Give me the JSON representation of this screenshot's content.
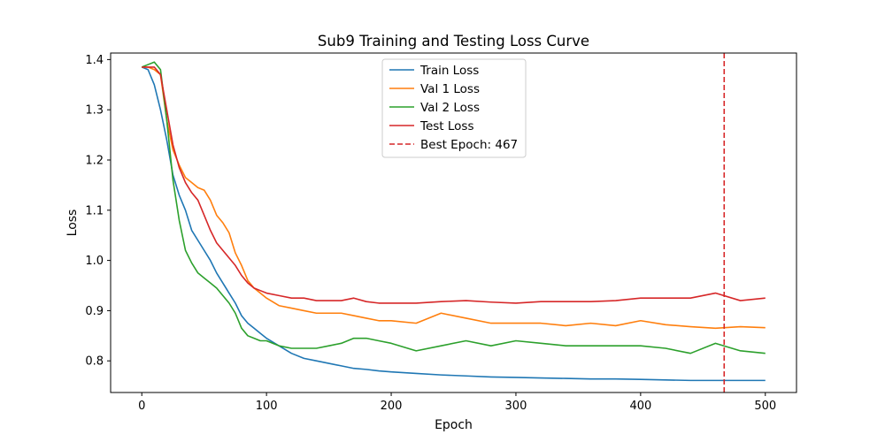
{
  "chart_data": {
    "type": "line",
    "title": "Sub9 Training and Testing Loss Curve",
    "xlabel": "Epoch",
    "ylabel": "Loss",
    "xlim": [
      -25,
      525
    ],
    "ylim": [
      0.737,
      1.413
    ],
    "xticks": [
      0,
      100,
      200,
      300,
      400,
      500
    ],
    "yticks": [
      0.8,
      0.9,
      1.0,
      1.1,
      1.2,
      1.3,
      1.4
    ],
    "ytick_labels": [
      "0.8",
      "0.9",
      "1.0",
      "1.1",
      "1.2",
      "1.3",
      "1.4"
    ],
    "grid": false,
    "legend_position": "upper center",
    "series": [
      {
        "name": "Train Loss",
        "color": "#1f77b4",
        "x": [
          0,
          5,
          10,
          15,
          20,
          25,
          30,
          35,
          40,
          45,
          50,
          55,
          60,
          65,
          70,
          75,
          80,
          85,
          90,
          95,
          100,
          110,
          120,
          130,
          140,
          150,
          160,
          170,
          180,
          190,
          200,
          220,
          240,
          260,
          280,
          300,
          320,
          340,
          360,
          380,
          400,
          420,
          440,
          460,
          480,
          500
        ],
        "y": [
          1.385,
          1.38,
          1.35,
          1.3,
          1.24,
          1.17,
          1.13,
          1.1,
          1.06,
          1.04,
          1.02,
          1.0,
          0.975,
          0.955,
          0.935,
          0.915,
          0.89,
          0.875,
          0.865,
          0.855,
          0.845,
          0.83,
          0.815,
          0.805,
          0.8,
          0.795,
          0.79,
          0.785,
          0.783,
          0.78,
          0.778,
          0.775,
          0.772,
          0.77,
          0.768,
          0.767,
          0.766,
          0.765,
          0.764,
          0.764,
          0.763,
          0.762,
          0.761,
          0.761,
          0.761,
          0.761
        ]
      },
      {
        "name": "Val 1 Loss",
        "color": "#ff7f0e",
        "x": [
          0,
          5,
          10,
          15,
          20,
          25,
          30,
          35,
          40,
          45,
          50,
          55,
          60,
          65,
          70,
          75,
          80,
          85,
          90,
          95,
          100,
          110,
          120,
          130,
          140,
          150,
          160,
          170,
          180,
          190,
          200,
          220,
          240,
          260,
          280,
          300,
          320,
          340,
          360,
          380,
          400,
          420,
          440,
          460,
          480,
          500
        ],
        "y": [
          1.385,
          1.385,
          1.38,
          1.37,
          1.28,
          1.22,
          1.19,
          1.165,
          1.155,
          1.145,
          1.14,
          1.12,
          1.09,
          1.075,
          1.055,
          1.015,
          0.99,
          0.96,
          0.945,
          0.935,
          0.925,
          0.91,
          0.905,
          0.9,
          0.895,
          0.895,
          0.895,
          0.89,
          0.885,
          0.88,
          0.88,
          0.875,
          0.895,
          0.885,
          0.875,
          0.875,
          0.875,
          0.87,
          0.875,
          0.87,
          0.88,
          0.872,
          0.868,
          0.865,
          0.868,
          0.866
        ]
      },
      {
        "name": "Val 2 Loss",
        "color": "#2ca02c",
        "x": [
          0,
          5,
          10,
          15,
          20,
          25,
          30,
          35,
          40,
          45,
          50,
          55,
          60,
          65,
          70,
          75,
          80,
          85,
          90,
          95,
          100,
          110,
          120,
          130,
          140,
          150,
          160,
          170,
          180,
          190,
          200,
          220,
          240,
          260,
          280,
          300,
          320,
          340,
          360,
          380,
          400,
          420,
          440,
          460,
          480,
          500
        ],
        "y": [
          1.385,
          1.39,
          1.395,
          1.38,
          1.28,
          1.16,
          1.08,
          1.02,
          0.995,
          0.975,
          0.965,
          0.955,
          0.945,
          0.93,
          0.915,
          0.895,
          0.865,
          0.85,
          0.845,
          0.84,
          0.84,
          0.83,
          0.825,
          0.825,
          0.825,
          0.83,
          0.835,
          0.845,
          0.845,
          0.84,
          0.835,
          0.82,
          0.83,
          0.84,
          0.83,
          0.84,
          0.835,
          0.83,
          0.83,
          0.83,
          0.83,
          0.825,
          0.815,
          0.835,
          0.82,
          0.815
        ]
      },
      {
        "name": "Test Loss",
        "color": "#d62728",
        "x": [
          0,
          5,
          10,
          15,
          20,
          25,
          30,
          35,
          40,
          45,
          50,
          55,
          60,
          65,
          70,
          75,
          80,
          85,
          90,
          95,
          100,
          110,
          120,
          130,
          140,
          150,
          160,
          170,
          180,
          190,
          200,
          220,
          240,
          260,
          280,
          300,
          320,
          340,
          360,
          380,
          400,
          420,
          440,
          460,
          480,
          500
        ],
        "y": [
          1.385,
          1.385,
          1.385,
          1.37,
          1.3,
          1.23,
          1.185,
          1.155,
          1.135,
          1.12,
          1.09,
          1.06,
          1.035,
          1.02,
          1.005,
          0.99,
          0.97,
          0.955,
          0.945,
          0.94,
          0.935,
          0.93,
          0.925,
          0.925,
          0.92,
          0.92,
          0.92,
          0.925,
          0.918,
          0.915,
          0.915,
          0.915,
          0.918,
          0.92,
          0.917,
          0.915,
          0.918,
          0.918,
          0.918,
          0.92,
          0.925,
          0.925,
          0.925,
          0.935,
          0.92,
          0.925
        ]
      }
    ],
    "vline": {
      "name": "Best Epoch: 467",
      "x": 467,
      "color": "#d62728",
      "style": "dashed"
    }
  }
}
